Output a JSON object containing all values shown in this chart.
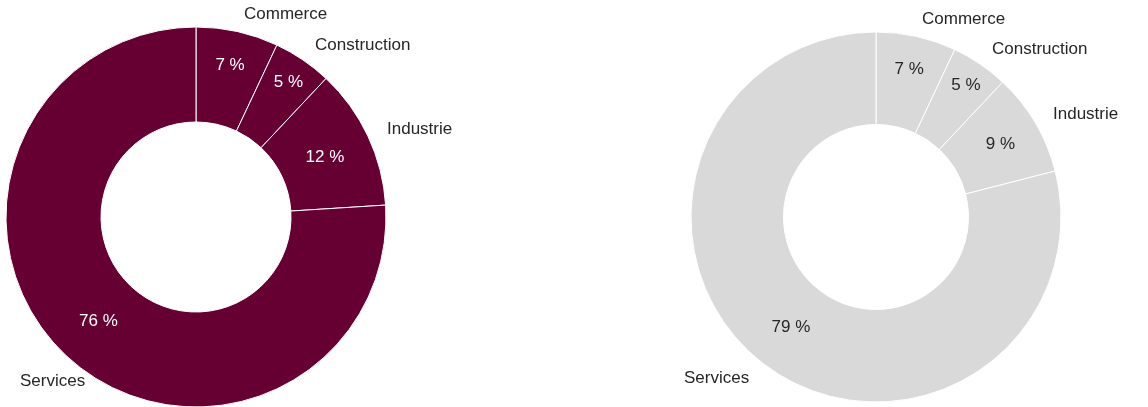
{
  "chart_data": [
    {
      "type": "donut",
      "categories": [
        "Commerce",
        "Construction",
        "Industrie",
        "Services"
      ],
      "values": [
        7,
        5,
        12,
        76
      ],
      "value_labels": [
        "7 %",
        "5 %",
        "12 %",
        "76 %"
      ],
      "colors": [
        "#660033",
        "#660033",
        "#660033",
        "#660033"
      ]
    },
    {
      "type": "donut",
      "categories": [
        "Commerce",
        "Construction",
        "Industrie",
        "Services"
      ],
      "values": [
        7,
        5,
        9,
        79
      ],
      "value_labels": [
        "7 %",
        "5 %",
        "9 %",
        "79 %"
      ],
      "colors": [
        "#d9d9d9",
        "#d9d9d9",
        "#d9d9d9",
        "#d9d9d9"
      ]
    }
  ]
}
